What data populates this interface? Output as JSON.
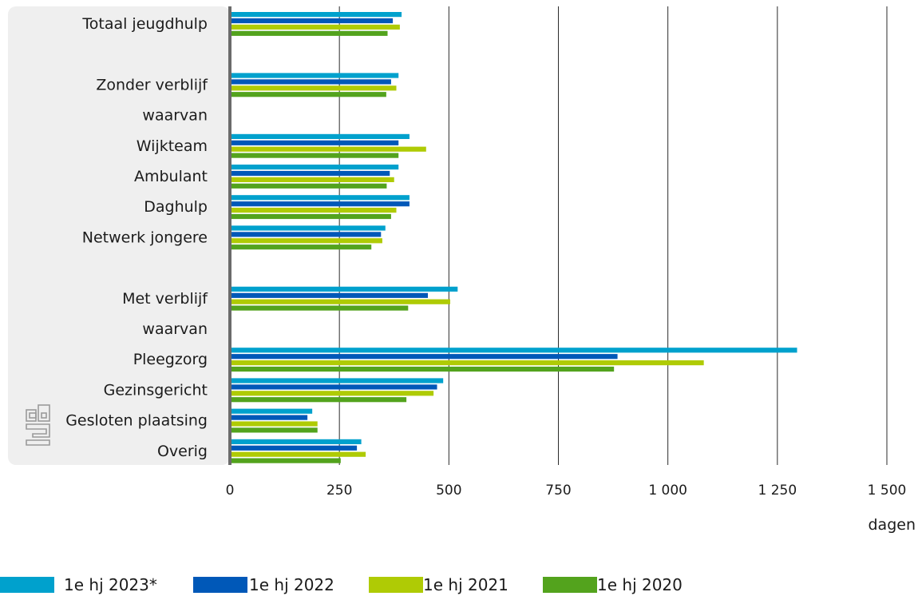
{
  "chart_data": {
    "type": "bar",
    "orientation": "horizontal",
    "categories": [
      "Totaal jeugdhulp",
      "",
      "Zonder verblijf",
      "waarvan",
      "Wijkteam",
      "Ambulant",
      "Daghulp",
      "Netwerk jongere",
      "",
      "Met verblijf",
      "waarvan",
      "Pleegzorg",
      "Gezinsgericht",
      "Gesloten plaatsing",
      "Overig"
    ],
    "series": [
      {
        "name": "1e hj 2023*",
        "color": "#00a1cd",
        "values": [
          392,
          null,
          385,
          null,
          410,
          385,
          410,
          355,
          null,
          520,
          null,
          1295,
          487,
          188,
          300
        ]
      },
      {
        "name": "1e hj 2022",
        "color": "#0058b8",
        "values": [
          372,
          null,
          368,
          null,
          385,
          365,
          410,
          345,
          null,
          452,
          null,
          885,
          473,
          177,
          290
        ]
      },
      {
        "name": "1e hj 2021",
        "color": "#afcb05",
        "values": [
          388,
          null,
          380,
          null,
          448,
          375,
          380,
          348,
          null,
          503,
          null,
          1082,
          465,
          200,
          310
        ]
      },
      {
        "name": "1e hj 2020",
        "color": "#53a31d",
        "values": [
          360,
          null,
          357,
          null,
          385,
          358,
          368,
          323,
          null,
          407,
          null,
          877,
          403,
          200,
          253
        ]
      }
    ],
    "x_ticks": [
      0,
      250,
      500,
      750,
      1000,
      1250,
      1500
    ],
    "x_tick_labels": [
      "0",
      "250",
      "500",
      "750",
      "1 000",
      "1 250",
      "1 500"
    ],
    "xlabel": "dagen",
    "xlim": [
      0,
      1500
    ],
    "grid": true,
    "legend_position": "bottom"
  },
  "logo": {
    "text": "cbs",
    "color": "#9a9a9a"
  }
}
